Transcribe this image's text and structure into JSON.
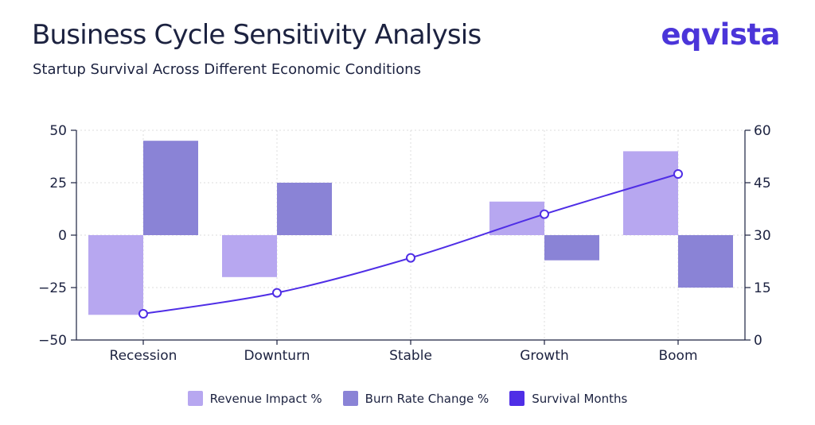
{
  "title": "Business Cycle Sensitivity Analysis",
  "subtitle": "Startup Survival Across Different Economic Conditions",
  "logo": {
    "text": "eqvista",
    "color": "#4b35d9"
  },
  "chart_data": {
    "type": "bar",
    "categories": [
      "Recession",
      "Downturn",
      "Stable",
      "Growth",
      "Boom"
    ],
    "series": [
      {
        "name": "Revenue Impact %",
        "type": "bar",
        "axis": "left",
        "color": "#b7a7f0",
        "values": [
          -38,
          -20,
          0,
          16,
          40
        ]
      },
      {
        "name": "Burn Rate Change %",
        "type": "bar",
        "axis": "left",
        "color": "#8a83d6",
        "values": [
          45,
          25,
          0,
          -12,
          -25
        ]
      },
      {
        "name": "Survival Months",
        "type": "line",
        "axis": "right",
        "color": "#4f2ee6",
        "values": [
          7.5,
          13.5,
          23.5,
          36,
          47.5
        ]
      }
    ],
    "left_axis": {
      "min": -50,
      "max": 50,
      "ticks": [
        50,
        25,
        0,
        -25,
        -50
      ],
      "tick_labels": [
        "50",
        "25",
        "0",
        "−25",
        "−50"
      ]
    },
    "right_axis": {
      "min": 0,
      "max": 60,
      "ticks": [
        60,
        45,
        30,
        15,
        0
      ],
      "tick_labels": [
        "60",
        "45",
        "30",
        "15",
        "0"
      ]
    },
    "grid": true,
    "legend_position": "bottom-center"
  }
}
